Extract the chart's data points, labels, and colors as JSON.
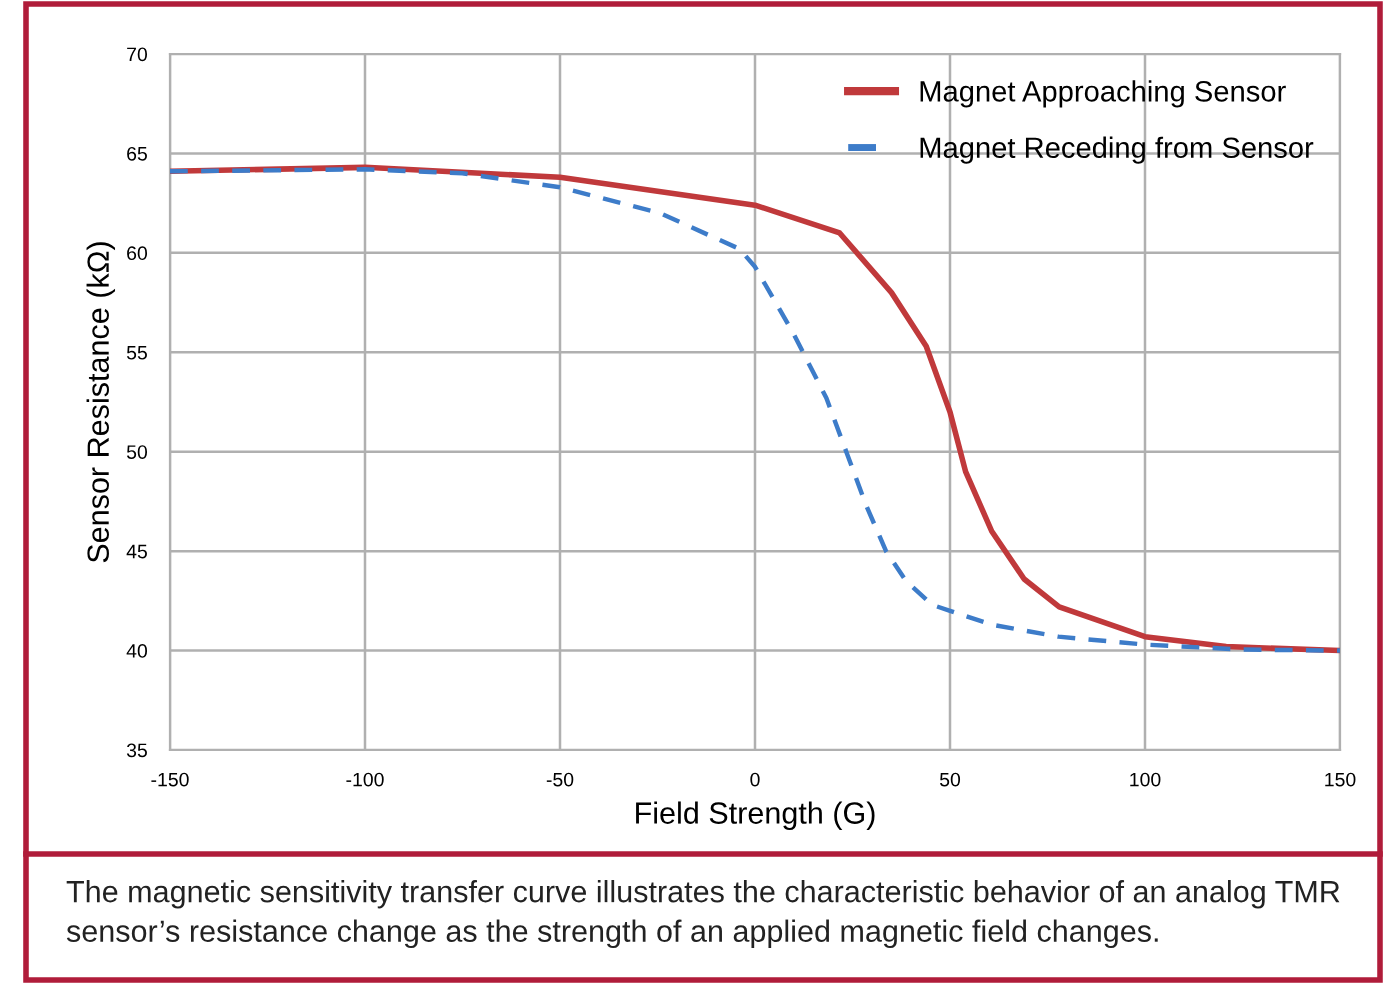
{
  "chart_data": {
    "type": "line",
    "xlabel": "Field Strength (G)",
    "ylabel": "Sensor Resistance (kΩ)",
    "xlim": [
      -150,
      150
    ],
    "xticks": [
      -150,
      -100,
      -50,
      0,
      50,
      100,
      150
    ],
    "ylim": [
      35,
      70
    ],
    "yticks": [
      35,
      40,
      45,
      50,
      55,
      60,
      65,
      70
    ],
    "grid": true,
    "legend": "top right",
    "marker": "none",
    "annotations": [
      "The magnetic sensitivity transfer curve illustrates the characteristic behavior of an analog TMR sensor’s resistance change as the strength of an applied magnetic field changes."
    ],
    "series": [
      {
        "name": "Magnet Approaching Sensor",
        "color": "#c0393b",
        "line_style": "solid",
        "x": [
          -150,
          -100,
          -50,
          0,
          21.7,
          35,
          43.9,
          50,
          54,
          60.7,
          69,
          78,
          100,
          120.8,
          150
        ],
        "values": [
          64.1,
          64.3,
          63.8,
          62.4,
          61.0,
          58.0,
          55.3,
          52.0,
          49.0,
          46.0,
          43.6,
          42.2,
          40.7,
          40.2,
          40.0
        ]
      },
      {
        "name": "Magnet Receding from Sensor",
        "color": "#3d7cc9",
        "line_style": "dashed",
        "x": [
          -150,
          -100,
          -75,
          -50,
          -24.4,
          -4,
          0,
          9.7,
          18.3,
          23.4,
          28.5,
          33.6,
          38.7,
          45.4,
          50,
          60.7,
          77.8,
          100,
          125,
          150
        ],
        "values": [
          64.1,
          64.2,
          64.0,
          63.3,
          62.0,
          60.2,
          59.3,
          56.0,
          52.7,
          50.0,
          47.3,
          45.0,
          43.5,
          42.3,
          42.0,
          41.3,
          40.7,
          40.3,
          40.05,
          40.0
        ]
      }
    ]
  }
}
